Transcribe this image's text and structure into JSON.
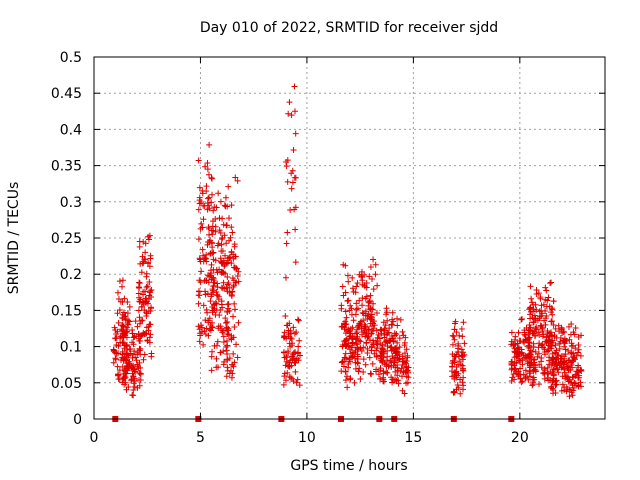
{
  "chart_data": {
    "type": "scatter",
    "title": "Day 010 of 2022, SRMTID for receiver sjdd",
    "xlabel": "GPS time / hours",
    "ylabel": "SRMTID / TECUs",
    "xlim": [
      0,
      24
    ],
    "ylim": [
      0,
      0.5
    ],
    "grid": true,
    "x_ticks": [
      0,
      5,
      10,
      15,
      20
    ],
    "x_tick_labels": [
      "0",
      "5",
      "10",
      "15",
      "20"
    ],
    "y_ticks": [
      0,
      0.05,
      0.1,
      0.15,
      0.2,
      0.25,
      0.3,
      0.35,
      0.4,
      0.45,
      0.5
    ],
    "y_tick_labels": [
      "0",
      "0.05",
      "0.1",
      "0.15",
      "0.2",
      "0.25",
      "0.3",
      "0.35",
      "0.4",
      "0.45",
      "0.5"
    ],
    "marker": "+",
    "color": "#e00000",
    "baseline_markers_x": [
      1.0,
      4.9,
      8.8,
      11.6,
      13.4,
      14.1,
      16.9,
      19.6
    ],
    "clusters": [
      {
        "x_range": [
          0.9,
          1.6
        ],
        "y_range": [
          0.05,
          0.2
        ],
        "count": 80
      },
      {
        "x_range": [
          1.3,
          2.2
        ],
        "y_range": [
          0.03,
          0.16
        ],
        "count": 110
      },
      {
        "x_range": [
          2.1,
          2.7
        ],
        "y_range": [
          0.07,
          0.28
        ],
        "count": 90
      },
      {
        "x_range": [
          4.9,
          5.6
        ],
        "y_range": [
          0.08,
          0.4
        ],
        "count": 110
      },
      {
        "x_range": [
          5.5,
          6.3
        ],
        "y_range": [
          0.06,
          0.35
        ],
        "count": 130
      },
      {
        "x_range": [
          6.2,
          6.8
        ],
        "y_range": [
          0.04,
          0.34
        ],
        "count": 80
      },
      {
        "x_range": [
          8.9,
          9.7
        ],
        "y_range": [
          0.04,
          0.16
        ],
        "count": 70
      },
      {
        "x_range": [
          9.0,
          9.5
        ],
        "y_range": [
          0.18,
          0.5
        ],
        "count": 25
      },
      {
        "x_range": [
          11.6,
          12.4
        ],
        "y_range": [
          0.04,
          0.23
        ],
        "count": 110
      },
      {
        "x_range": [
          12.3,
          13.3
        ],
        "y_range": [
          0.05,
          0.23
        ],
        "count": 130
      },
      {
        "x_range": [
          13.3,
          14.1
        ],
        "y_range": [
          0.05,
          0.16
        ],
        "count": 90
      },
      {
        "x_range": [
          14.0,
          14.8
        ],
        "y_range": [
          0.03,
          0.15
        ],
        "count": 80
      },
      {
        "x_range": [
          16.8,
          17.4
        ],
        "y_range": [
          0.03,
          0.15
        ],
        "count": 70
      },
      {
        "x_range": [
          19.6,
          20.5
        ],
        "y_range": [
          0.05,
          0.14
        ],
        "count": 110
      },
      {
        "x_range": [
          20.4,
          21.6
        ],
        "y_range": [
          0.04,
          0.2
        ],
        "count": 180
      },
      {
        "x_range": [
          21.5,
          22.9
        ],
        "y_range": [
          0.03,
          0.14
        ],
        "count": 180
      }
    ]
  }
}
